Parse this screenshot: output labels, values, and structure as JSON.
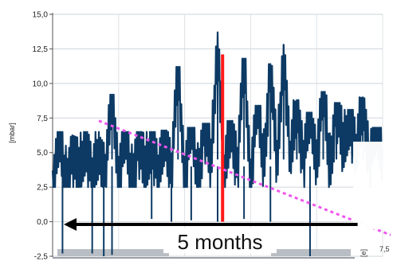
{
  "chart_data": {
    "type": "line",
    "ylabel": "[mbar]",
    "ylim": [
      -2.5,
      15.0
    ],
    "yticks": [
      "15,0",
      "12,5",
      "10,0",
      "7,5",
      "5,0",
      "2,5",
      "0,0",
      "-2,5"
    ],
    "yticks_values": [
      15.0,
      12.5,
      10.0,
      7.5,
      5.0,
      2.5,
      0.0,
      -2.5
    ],
    "grid": true,
    "series": [
      {
        "name": "",
        "color": "#0c3a64",
        "x": [
          0,
          2,
          4,
          6,
          8,
          10,
          12,
          14,
          16,
          18,
          20,
          22,
          24,
          26,
          28,
          30,
          32,
          34,
          36,
          38,
          40,
          42,
          44,
          46,
          48,
          50,
          52,
          54,
          56,
          58,
          60,
          62,
          64,
          66,
          68,
          70,
          72,
          74,
          76,
          78,
          80,
          82,
          84,
          86,
          88,
          90,
          92,
          94,
          96,
          98,
          100
        ],
        "y": [
          2.6,
          5.8,
          3.0,
          4.8,
          3.2,
          6.2,
          2.8,
          5.5,
          3.4,
          9.2,
          3.6,
          6.0,
          3.1,
          5.9,
          3.3,
          6.4,
          3.0,
          6.6,
          3.5,
          11.2,
          3.6,
          6.8,
          3.2,
          7.1,
          3.8,
          13.7,
          3.0,
          7.3,
          3.9,
          11.8,
          3.4,
          8.4,
          4.2,
          11.4,
          3.7,
          12.8,
          4.0,
          8.8,
          4.4,
          7.9,
          4.8,
          9.4,
          3.9,
          8.6,
          5.0,
          8.1,
          4.5,
          9.0,
          4.3,
          6.8,
          5.4
        ]
      }
    ],
    "drops": [
      {
        "x": 3.0,
        "y": -2.3
      },
      {
        "x": 12.0,
        "y": -2.3
      },
      {
        "x": 15.5,
        "y": -2.5
      },
      {
        "x": 18.0,
        "y": -2.4
      },
      {
        "x": 30.0,
        "y": 0.2
      },
      {
        "x": 36.0,
        "y": 0.0
      },
      {
        "x": 42.0,
        "y": 0.1
      },
      {
        "x": 50.0,
        "y": 0.0
      },
      {
        "x": 58.0,
        "y": 0.2
      },
      {
        "x": 66.0,
        "y": 0.0
      },
      {
        "x": 78.0,
        "y": -2.5
      }
    ],
    "marker": {
      "x": 51.5,
      "from": 0.0,
      "to": 12.1,
      "color": "#ff1a1a"
    },
    "trend": {
      "x": [
        14,
        100
      ],
      "y": [
        7.3,
        -0.5
      ],
      "color": "#ee55ee"
    },
    "annotation": {
      "text": "5 months",
      "arrow_from_x": 90,
      "arrow_to_x": 0,
      "arrow_y": -0.2
    },
    "side_label": "7,5"
  }
}
